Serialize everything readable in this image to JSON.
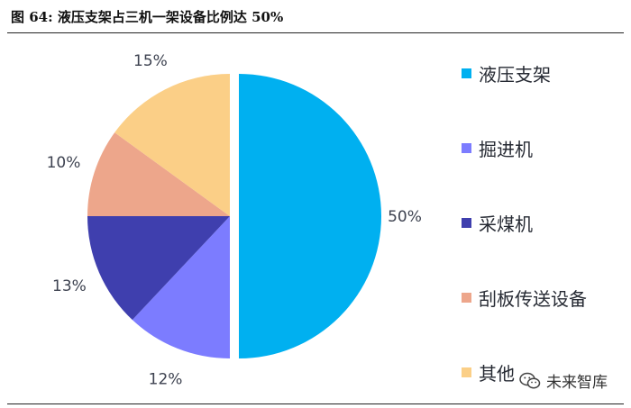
{
  "figure": {
    "title": "图  64:  液压支架占三机一架设备比例达 50%"
  },
  "watermark": {
    "text": "未来智库",
    "icon": "wechat-icon"
  },
  "chart_data": {
    "type": "pie",
    "slices": [
      {
        "label": "液压支架",
        "value": 50,
        "value_label": "50%",
        "color": "#00b0f0",
        "exploded": true
      },
      {
        "label": "掘进机",
        "value": 12,
        "value_label": "12%",
        "color": "#7c7cff",
        "exploded": false
      },
      {
        "label": "采煤机",
        "value": 13,
        "value_label": "13%",
        "color": "#3f3fae",
        "exploded": false
      },
      {
        "label": "刮板传送设备",
        "value": 10,
        "value_label": "10%",
        "color": "#eda68b",
        "exploded": false
      },
      {
        "label": "其他",
        "value": 15,
        "value_label": "15%",
        "color": "#fbcf87",
        "exploded": false
      }
    ],
    "start_angle": "12 o'clock",
    "direction": "clockwise",
    "legend": "right"
  }
}
